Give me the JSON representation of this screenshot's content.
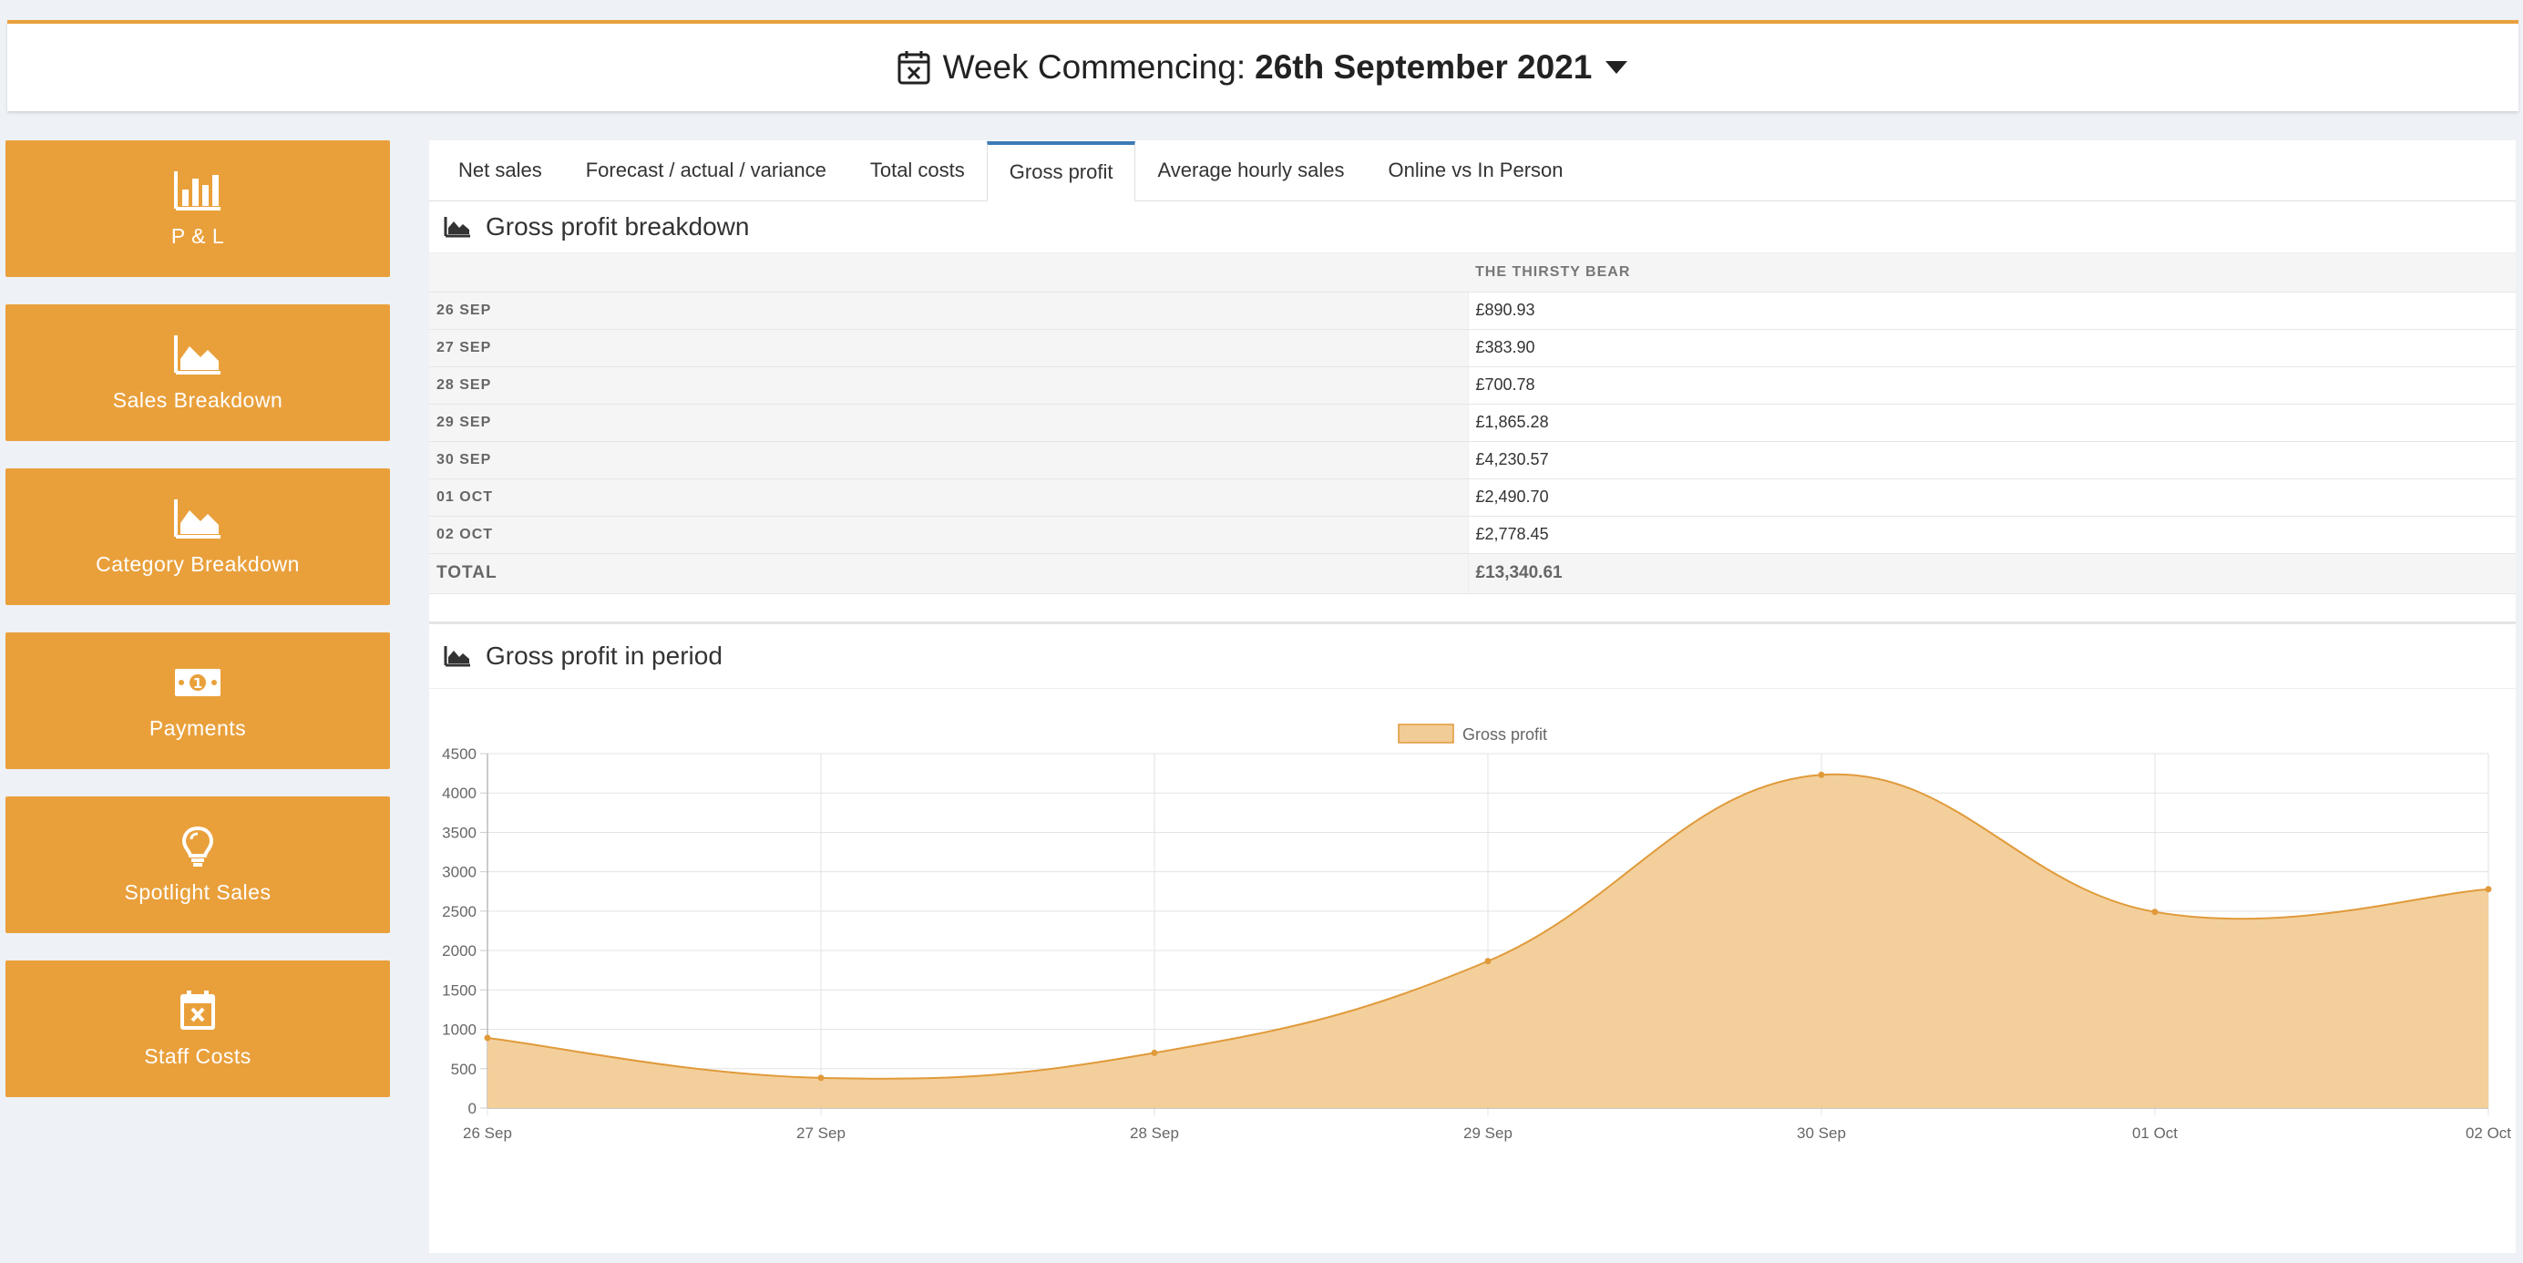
{
  "header": {
    "prefix": "Week Commencing:",
    "week": "26th September 2021"
  },
  "sidebar": {
    "items": [
      {
        "label": "P & L",
        "icon": "bar-chart-icon"
      },
      {
        "label": "Sales Breakdown",
        "icon": "area-chart-icon"
      },
      {
        "label": "Category Breakdown",
        "icon": "area-chart-icon"
      },
      {
        "label": "Payments",
        "icon": "money-icon"
      },
      {
        "label": "Spotlight Sales",
        "icon": "lightbulb-icon"
      },
      {
        "label": "Staff Costs",
        "icon": "calendar-times-icon"
      }
    ]
  },
  "tabs": [
    {
      "label": "Net sales"
    },
    {
      "label": "Forecast / actual / variance"
    },
    {
      "label": "Total costs"
    },
    {
      "label": "Gross profit",
      "active": true
    },
    {
      "label": "Average hourly sales"
    },
    {
      "label": "Online vs In Person"
    }
  ],
  "breakdown": {
    "title": "Gross profit breakdown",
    "column": "THE THIRSTY BEAR",
    "rows": [
      {
        "date": "26 SEP",
        "value": "£890.93"
      },
      {
        "date": "27 SEP",
        "value": "£383.90"
      },
      {
        "date": "28 SEP",
        "value": "£700.78"
      },
      {
        "date": "29 SEP",
        "value": "£1,865.28"
      },
      {
        "date": "30 SEP",
        "value": "£4,230.57"
      },
      {
        "date": "01 OCT",
        "value": "£2,490.70"
      },
      {
        "date": "02 OCT",
        "value": "£2,778.45"
      }
    ],
    "total_label": "TOTAL",
    "total_value": "£13,340.61"
  },
  "period": {
    "title": "Gross profit in period"
  },
  "colors": {
    "accent": "#e9a03b",
    "tab_active": "#3d7ab8",
    "area_fill": "#f2cc97",
    "area_line": "#e09a3a"
  },
  "chart_data": {
    "type": "area",
    "categories": [
      "26 Sep",
      "27 Sep",
      "28 Sep",
      "29 Sep",
      "30 Sep",
      "01 Oct",
      "02 Oct"
    ],
    "series": [
      {
        "name": "Gross profit",
        "values": [
          890.93,
          383.9,
          700.78,
          1865.28,
          4230.57,
          2490.7,
          2778.45
        ]
      }
    ],
    "ylim": [
      0,
      4500
    ],
    "yticks": [
      0,
      500,
      1000,
      1500,
      2000,
      2500,
      3000,
      3500,
      4000,
      4500
    ],
    "grid": true,
    "legend": "top-center"
  }
}
